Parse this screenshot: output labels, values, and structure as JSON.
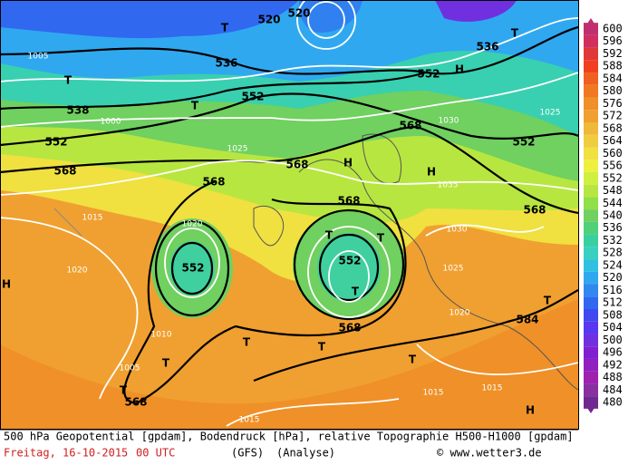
{
  "footer": {
    "description": "500 hPa Geopotential [gpdam], Bodendruck [hPa], relative Topographie H500-H1000 [gpdam]",
    "date": "Freitag, 16-10-2015",
    "time": "00 UTC",
    "model": "(GFS)",
    "run": "(Analyse)",
    "source": "© www.wetter3.de"
  },
  "colorbar": {
    "levels": [
      600,
      596,
      592,
      588,
      584,
      580,
      576,
      572,
      568,
      564,
      560,
      556,
      552,
      548,
      544,
      540,
      536,
      532,
      528,
      524,
      520,
      516,
      512,
      508,
      504,
      500,
      496,
      492,
      488,
      484,
      480
    ],
    "colors": [
      "#c03070",
      "#d03060",
      "#e03838",
      "#f04020",
      "#f06020",
      "#f07820",
      "#f09028",
      "#f0a030",
      "#f0b838",
      "#f0cc40",
      "#f0e040",
      "#eef040",
      "#d0f040",
      "#b8e640",
      "#90e048",
      "#70d060",
      "#50d078",
      "#38d0a0",
      "#38d0c0",
      "#30c0e0",
      "#30a8f0",
      "#3088f0",
      "#3068f0",
      "#4048f0",
      "#5838f0",
      "#7030e0",
      "#8020d0",
      "#9020c0",
      "#a020b0",
      "#8830a0",
      "#702890"
    ]
  },
  "height_labels": [
    "520",
    "520",
    "536",
    "536",
    "538",
    "552",
    "552",
    "552",
    "552",
    "568",
    "568",
    "568",
    "568",
    "568",
    "568",
    "552",
    "552",
    "568",
    "584",
    "568"
  ],
  "pressure_labels": [
    "1005",
    "1000",
    "1025",
    "1020",
    "1035",
    "1030",
    "1025",
    "1020",
    "1015",
    "1010",
    "1005",
    "1015",
    "1015",
    "1015",
    "1025",
    "1020",
    "1030"
  ],
  "centers": [
    "T",
    "T",
    "T",
    "T",
    "T",
    "T",
    "T",
    "T",
    "T",
    "T",
    "T",
    "T",
    "H",
    "H",
    "H",
    "H",
    "H",
    "T"
  ]
}
